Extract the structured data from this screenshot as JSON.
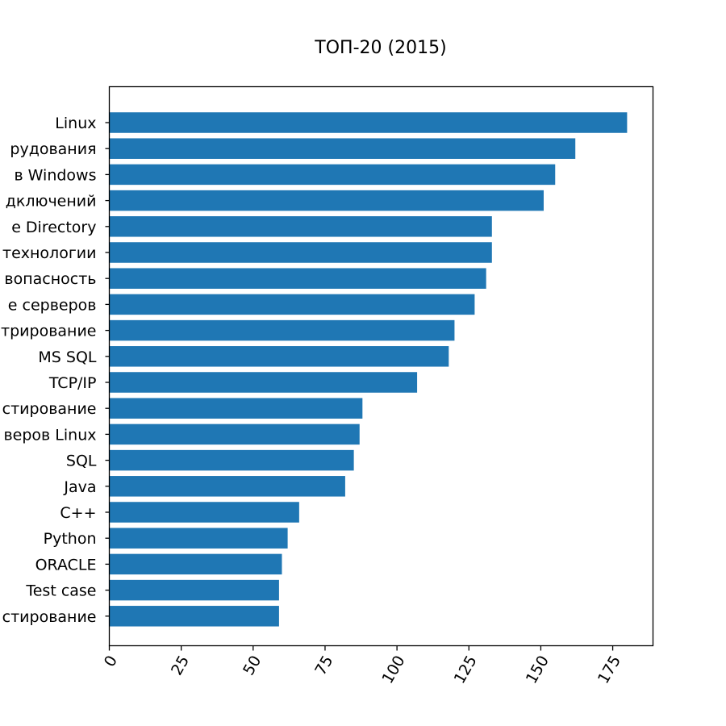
{
  "chart_data": {
    "type": "bar",
    "orientation": "horizontal",
    "title": "ТОП-20 (2015)",
    "xlabel": "",
    "ylabel": "",
    "xlim": [
      0,
      189
    ],
    "xticks": [
      0,
      25,
      50,
      75,
      100,
      125,
      150,
      175
    ],
    "grid": false,
    "color": "#1f77b4",
    "categories": [
      "Linux",
      "рудования",
      "в Windows",
      "дключений",
      "e Directory",
      "технологии",
      "вопасность",
      "е серверов",
      "трирование",
      "MS SQL",
      "TCP/IP",
      "стирование",
      "веров Linux",
      "SQL",
      "Java",
      "C++",
      "Python",
      "ORACLE",
      "Test case",
      "стирование"
    ],
    "values": [
      180,
      162,
      155,
      151,
      133,
      133,
      131,
      127,
      120,
      118,
      107,
      88,
      87,
      85,
      82,
      66,
      62,
      60,
      59,
      59
    ]
  }
}
